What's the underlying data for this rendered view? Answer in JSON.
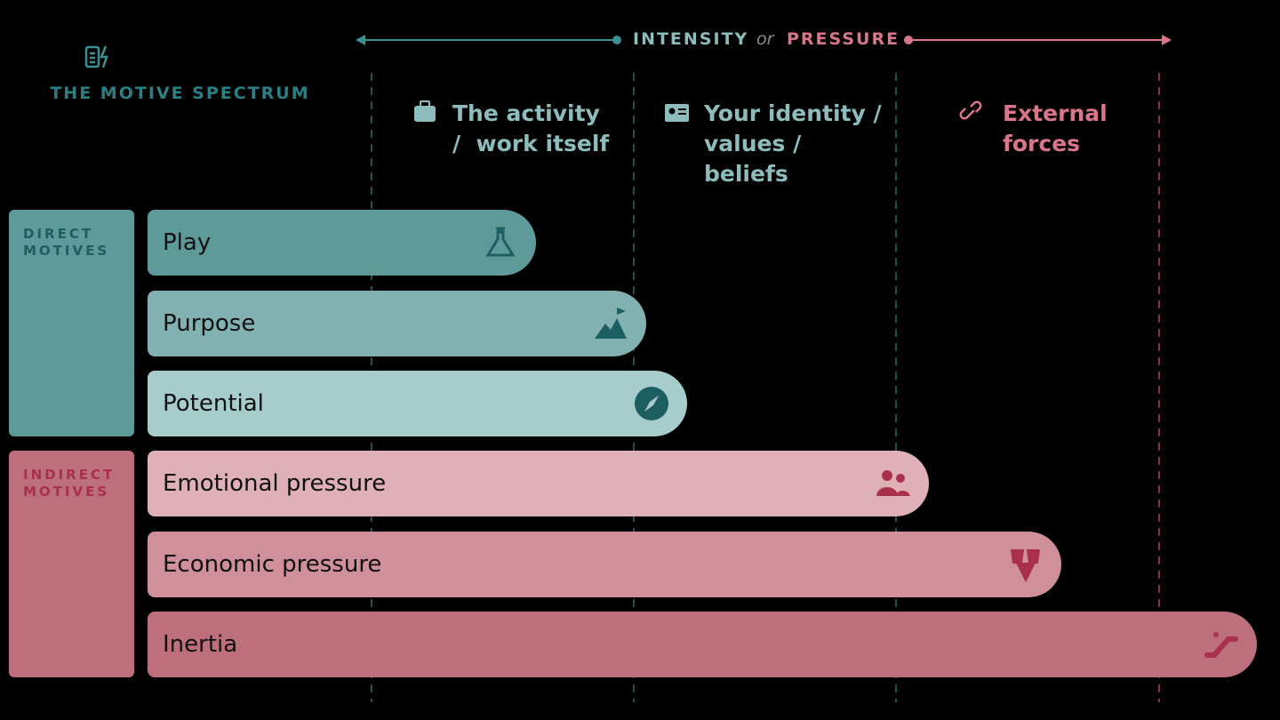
{
  "header": {
    "title": "THE MOTIVE SPECTRUM"
  },
  "axis": {
    "left": "INTENSITY",
    "middle": "or",
    "right": "PRESSURE"
  },
  "columns": [
    {
      "lines": [
        "The activity",
        "/  work itself"
      ]
    },
    {
      "lines": [
        "Your identity /",
        "values /",
        "beliefs"
      ]
    },
    {
      "lines": [
        "External",
        "forces"
      ]
    }
  ],
  "groups": [
    {
      "lines": [
        "DIRECT",
        "MOTIVES"
      ],
      "bars": [
        "Play",
        "Purpose",
        "Potential"
      ]
    },
    {
      "lines": [
        "INDIRECT",
        "MOTIVES"
      ],
      "bars": [
        "Emotional pressure",
        "Economic pressure",
        "Inertia"
      ]
    }
  ]
}
